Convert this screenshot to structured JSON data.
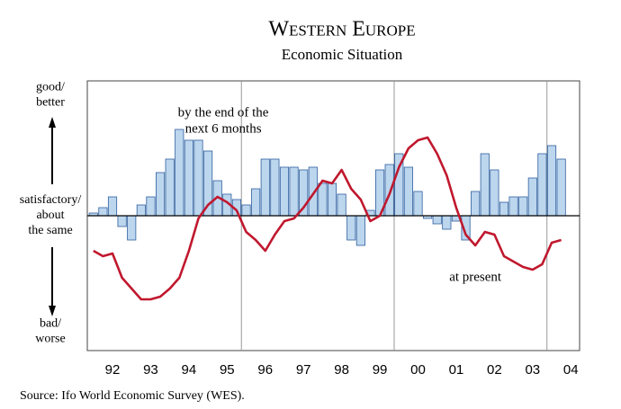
{
  "chart_data": {
    "type": "combo",
    "title": "Western Europe",
    "subtitle": "Economic Situation",
    "y_labels": {
      "top": [
        "good/",
        "better"
      ],
      "middle": [
        "satisfactory/",
        "about",
        "the same"
      ],
      "bottom": [
        "bad/",
        "worse"
      ]
    },
    "annotations": [
      {
        "lines": [
          "by the end of the",
          "next 6 months"
        ],
        "x": 1995.4,
        "y": 38
      },
      {
        "lines": [
          "at present"
        ],
        "x": 2002.0,
        "y": -23
      }
    ],
    "source": "Source: Ifo World Economic Survey (WES).",
    "xlim": [
      1991.84,
      2004.73
    ],
    "ylim": [
      -50,
      50
    ],
    "xticks": [
      {
        "value": 1992.5,
        "label": "92"
      },
      {
        "value": 1993.5,
        "label": "93"
      },
      {
        "value": 1994.5,
        "label": "94"
      },
      {
        "value": 1995.5,
        "label": "95"
      },
      {
        "value": 1996.5,
        "label": "96"
      },
      {
        "value": 1997.5,
        "label": "97"
      },
      {
        "value": 1998.5,
        "label": "98"
      },
      {
        "value": 1999.5,
        "label": "99"
      },
      {
        "value": 2000.5,
        "label": "00"
      },
      {
        "value": 2001.5,
        "label": "01"
      },
      {
        "value": 2002.5,
        "label": "02"
      },
      {
        "value": 2003.5,
        "label": "03"
      },
      {
        "value": 2004.5,
        "label": "04"
      }
    ],
    "reference_lines": [
      1995.875,
      1999.875,
      2003.875
    ],
    "x": [
      1992,
      1992.25,
      1992.5,
      1992.75,
      1993,
      1993.25,
      1993.5,
      1993.75,
      1994,
      1994.25,
      1994.5,
      1994.75,
      1995,
      1995.25,
      1995.5,
      1995.75,
      1996,
      1996.25,
      1996.5,
      1996.75,
      1997,
      1997.25,
      1997.5,
      1997.75,
      1998,
      1998.25,
      1998.5,
      1998.75,
      1999,
      1999.25,
      1999.5,
      1999.75,
      2000,
      2000.25,
      2000.5,
      2000.75,
      2001,
      2001.25,
      2001.5,
      2001.75,
      2002,
      2002.25,
      2002.5,
      2002.75,
      2003,
      2003.25,
      2003.5,
      2003.75,
      2004,
      2004.25
    ],
    "series": [
      {
        "type": "bar",
        "color": "#bcd6ee",
        "stroke": "#2f5f9e",
        "values": [
          1,
          3,
          7,
          -4,
          -9,
          4,
          7,
          16,
          21,
          32,
          28,
          28,
          24,
          13,
          8,
          6,
          4,
          10,
          21,
          21,
          18,
          18,
          17,
          18,
          12,
          12,
          8,
          -9,
          -11,
          2,
          17,
          19,
          23,
          18,
          9,
          -1,
          -3,
          -5,
          -2,
          -9,
          9,
          23,
          17,
          5,
          7,
          7,
          14,
          23,
          26,
          21
        ]
      },
      {
        "type": "line",
        "color": "#c0182e",
        "values": [
          -13,
          -15,
          -14,
          -23,
          -27,
          -31,
          -31,
          -30,
          -27,
          -23,
          -13,
          -1,
          4,
          7,
          5,
          2,
          -6,
          -9,
          -13,
          -7,
          -2,
          -1,
          3,
          8,
          13,
          12,
          17,
          10,
          6,
          -2,
          0,
          8,
          18,
          25,
          28,
          29,
          23,
          15,
          3,
          -7,
          -11,
          -6,
          -7,
          -15,
          -17,
          -19,
          -20,
          -18,
          -10,
          -9
        ]
      }
    ]
  }
}
